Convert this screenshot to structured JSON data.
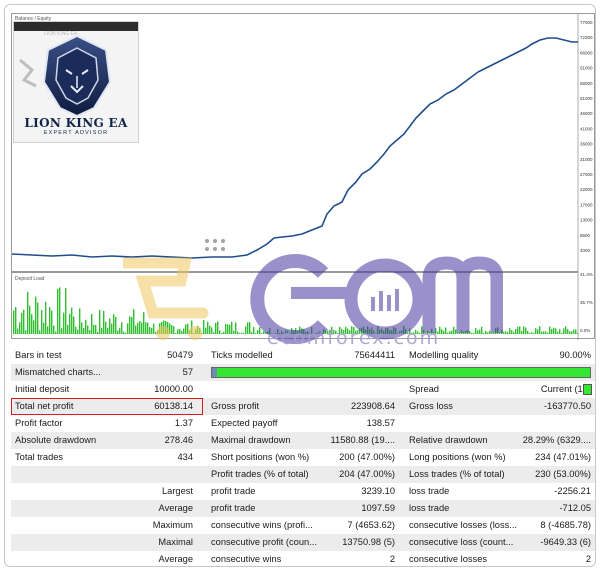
{
  "chart": {
    "balance_tag": "Balance / Equity",
    "deposit_tag": "Deposit Load",
    "y_ticks": [
      "77000",
      "72300",
      "66000",
      "61000",
      "56000",
      "51000",
      "46000",
      "41000",
      "36000",
      "31000",
      "27000",
      "22000",
      "17000",
      "13000",
      "8600",
      "4000",
      "41.3%",
      "35.7%",
      "0.0%"
    ]
  },
  "logo": {
    "topbar": "LION KING EA",
    "title": "LION KING EA",
    "subtitle": "EXPERT ADVISOR"
  },
  "watermark": {
    "text": "ecomforex.com"
  },
  "stats": {
    "bars_in_test_label": "Bars in test",
    "bars_in_test_value": "50479",
    "ticks_modelled_label": "Ticks modelled",
    "ticks_modelled_value": "75644411",
    "modelling_quality_label": "Modelling quality",
    "modelling_quality_value": "90.00%",
    "mismatched_label": "Mismatched charts...",
    "mismatched_value": "57",
    "initial_deposit_label": "Initial deposit",
    "initial_deposit_value": "10000.00",
    "spread_label": "Spread",
    "spread_value": "Current (10)",
    "net_profit_label": "Total net profit",
    "net_profit_value": "60138.14",
    "gross_profit_label": "Gross profit",
    "gross_profit_value": "223908.64",
    "gross_loss_label": "Gross loss",
    "gross_loss_value": "-163770.50",
    "profit_factor_label": "Profit factor",
    "profit_factor_value": "1.37",
    "expected_payoff_label": "Expected payoff",
    "expected_payoff_value": "138.57",
    "abs_drawdown_label": "Absolute drawdown",
    "abs_drawdown_value": "278.46",
    "max_drawdown_label": "Maximal drawdown",
    "max_drawdown_value": "11580.88 (19....",
    "rel_drawdown_label": "Relative drawdown",
    "rel_drawdown_value": "28.29% (6329....",
    "total_trades_label": "Total trades",
    "total_trades_value": "434",
    "short_label": "Short positions (won %)",
    "short_value": "200 (47.00%)",
    "long_label": "Long positions (won %)",
    "long_value": "234 (47.01%)",
    "profit_trades_label": "Profit trades (% of total)",
    "profit_trades_value": "204 (47.00%)",
    "loss_trades_label": "Loss trades (% of total)",
    "loss_trades_value": "230 (53.00%)",
    "largest_label": "Largest",
    "largest_profit_label": "profit trade",
    "largest_profit_value": "3239.10",
    "largest_loss_label": "loss trade",
    "largest_loss_value": "-2256.21",
    "average_label": "Average",
    "average_profit_label": "profit trade",
    "average_profit_value": "1097.59",
    "average_loss_label": "loss trade",
    "average_loss_value": "-712.05",
    "maximum_label": "Maximum",
    "max_cons_wins_label": "consecutive wins (profi...",
    "max_cons_wins_value": "7 (4653.62)",
    "max_cons_losses_label": "consecutive losses (loss...",
    "max_cons_losses_value": "8 (-4685.78)",
    "maximal_label": "Maximal",
    "maximal_profit_label": "consecutive profit (coun...",
    "maximal_profit_value": "13750.98 (5)",
    "maximal_loss_label": "consecutive loss (count...",
    "maximal_loss_value": "-9649.33 (6)",
    "avg2_label": "Average",
    "avg_cons_wins_label": "consecutive wins",
    "avg_cons_wins_value": "2",
    "avg_cons_losses_label": "consecutive losses",
    "avg_cons_losses_value": "2"
  },
  "colors": {
    "balance_line": "#1f4e8c",
    "bar_green": "#32e632",
    "highlight_red": "#d71c1c"
  }
}
